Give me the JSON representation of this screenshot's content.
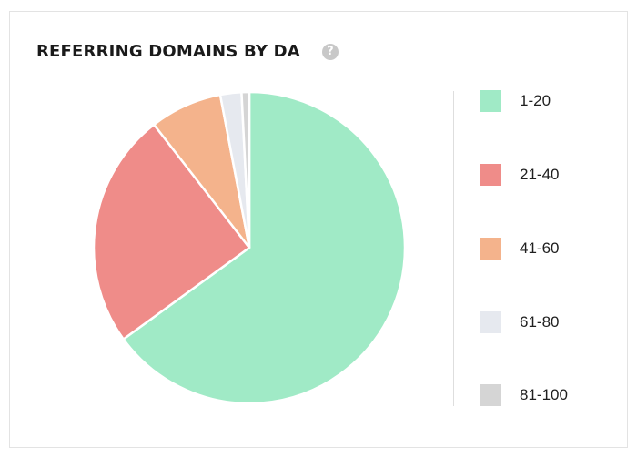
{
  "widget": {
    "title": "REFERRING DOMAINS BY DA",
    "help_icon": "question-circle-icon"
  },
  "chart_data": {
    "type": "pie",
    "title": "REFERRING DOMAINS BY DA",
    "start_angle": "top, clockwise",
    "legend_position": "right",
    "slices": [
      {
        "label": "1-20",
        "value": 65,
        "color": "#a0eac6"
      },
      {
        "label": "21-40",
        "value": 24.5,
        "color": "#ef8c89"
      },
      {
        "label": "41-60",
        "value": 7.5,
        "color": "#f4b38c"
      },
      {
        "label": "61-80",
        "value": 2.2,
        "color": "#e6e9ef"
      },
      {
        "label": "81-100",
        "value": 0.8,
        "color": "#d5d5d5"
      }
    ]
  }
}
